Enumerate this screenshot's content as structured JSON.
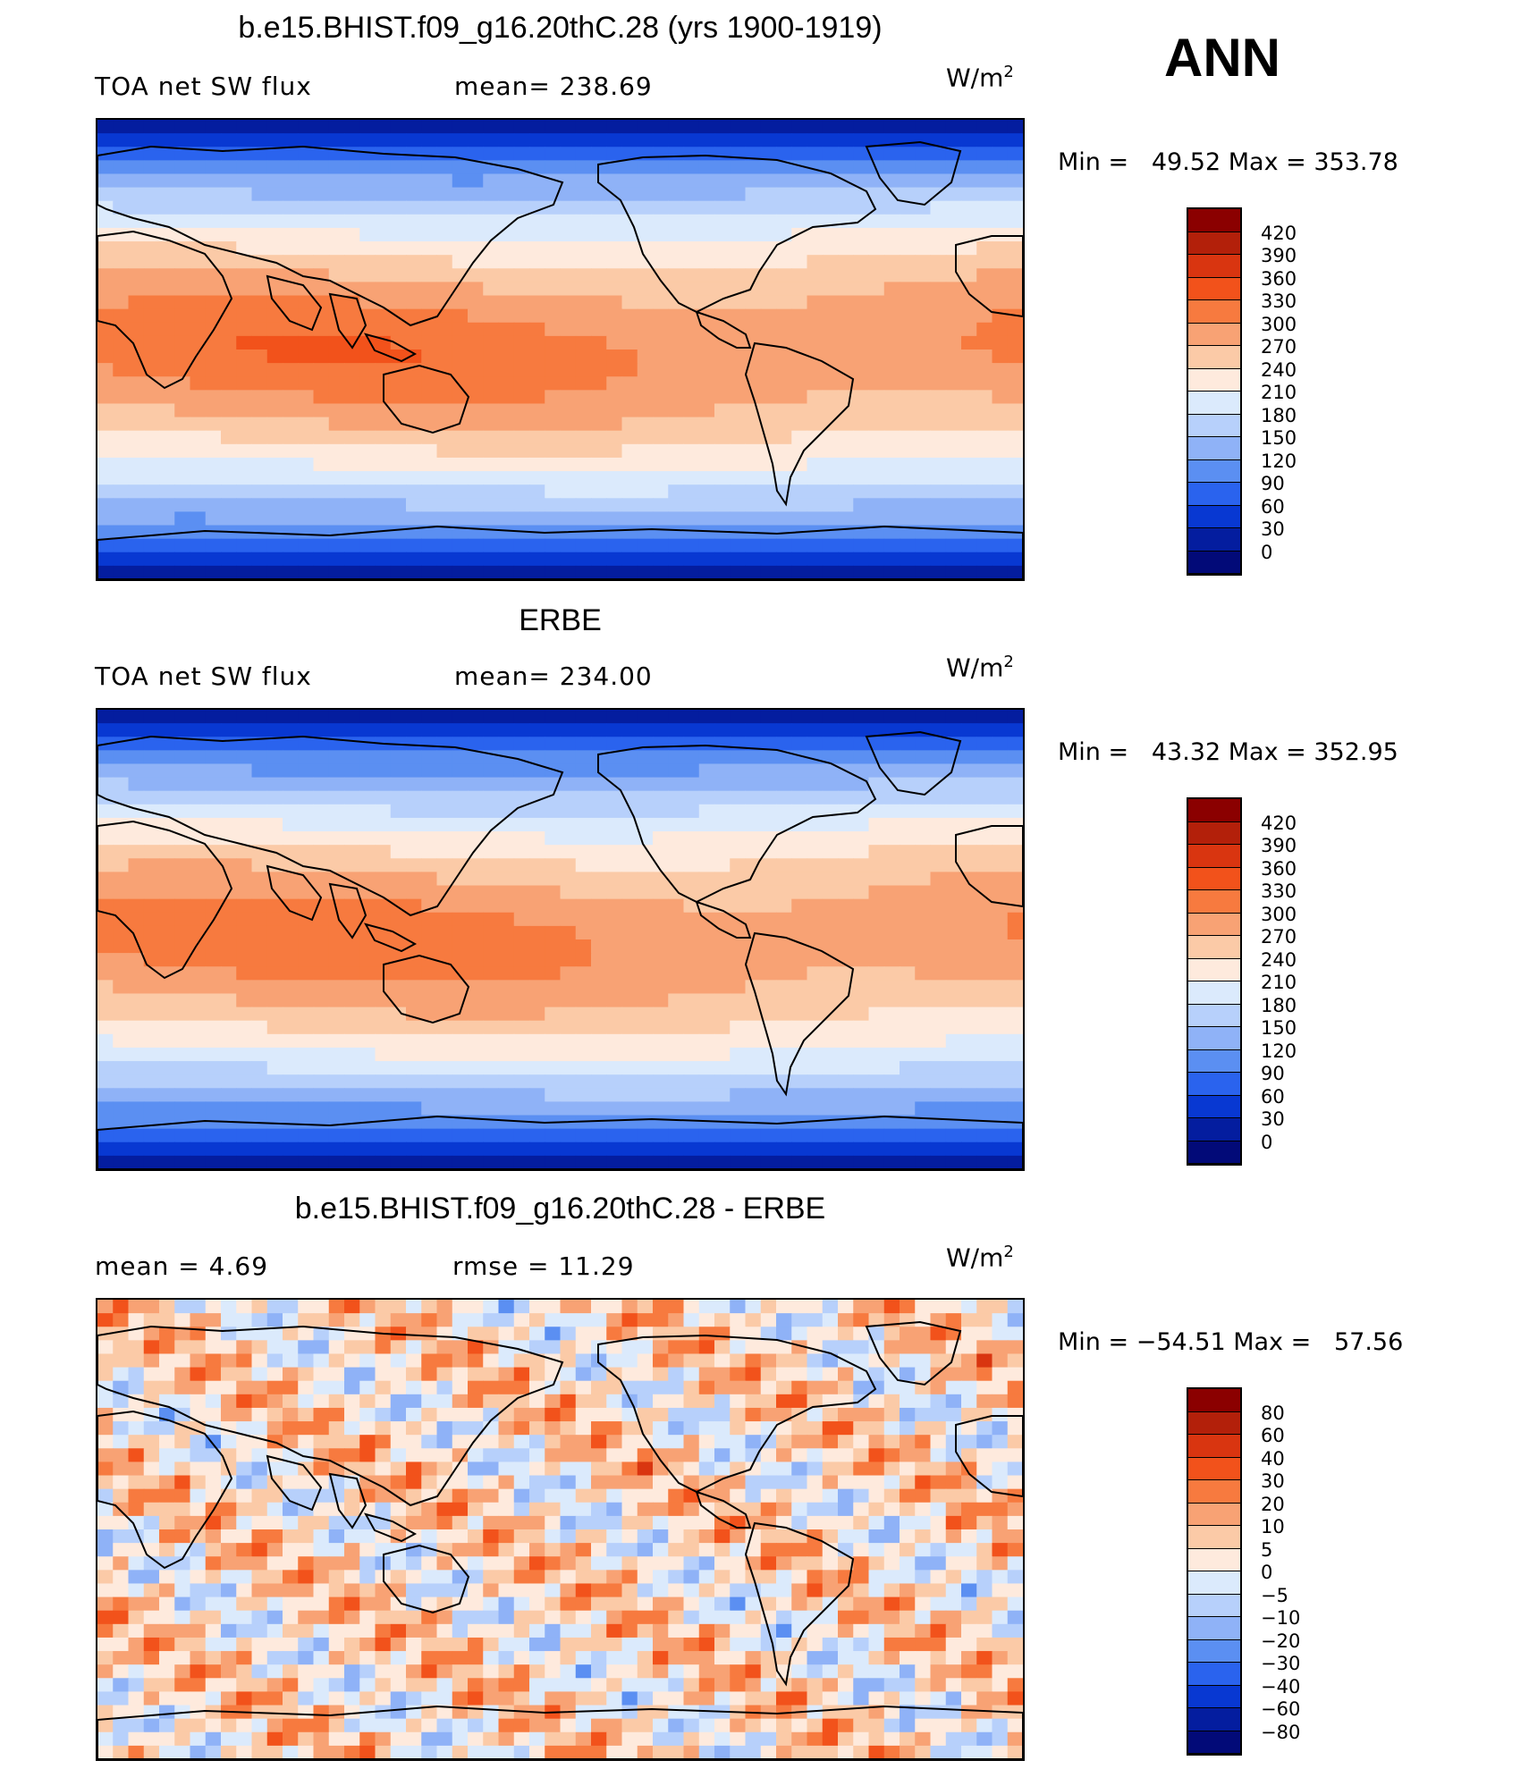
{
  "season": "ANN",
  "chart_data": [
    {
      "type": "heatmap",
      "title": "b.e15.BHIST.f09_g16.20thC.28 (yrs 1900-1919)",
      "left_label": "TOA net SW flux",
      "center_label": "mean= 238.69",
      "units": "W/m",
      "units_sup": "2",
      "minmax": "Min =   49.52 Max = 353.78",
      "stats": {
        "mean": 238.69,
        "min": 49.52,
        "max": 353.78
      },
      "colorbar": {
        "levels": [
          "420",
          "390",
          "360",
          "330",
          "300",
          "270",
          "240",
          "210",
          "180",
          "150",
          "120",
          "90",
          "60",
          "30",
          "0"
        ],
        "colors": [
          "#8b0000",
          "#b3200a",
          "#d93510",
          "#f2521b",
          "#f77a3f",
          "#f8a274",
          "#fbcaa7",
          "#feeadd",
          "#dbeafc",
          "#b7d0fb",
          "#8fb2f7",
          "#5b8ff2",
          "#2a63ee",
          "#0838d2",
          "#041d9f",
          "#020a78"
        ]
      }
    },
    {
      "type": "heatmap",
      "title": "ERBE",
      "left_label": "TOA net SW flux",
      "center_label": "mean= 234.00",
      "units": "W/m",
      "units_sup": "2",
      "minmax": "Min =   43.32 Max = 352.95",
      "stats": {
        "mean": 234.0,
        "min": 43.32,
        "max": 352.95
      },
      "colorbar": {
        "levels": [
          "420",
          "390",
          "360",
          "330",
          "300",
          "270",
          "240",
          "210",
          "180",
          "150",
          "120",
          "90",
          "60",
          "30",
          "0"
        ],
        "colors": [
          "#8b0000",
          "#b3200a",
          "#d93510",
          "#f2521b",
          "#f77a3f",
          "#f8a274",
          "#fbcaa7",
          "#feeadd",
          "#dbeafc",
          "#b7d0fb",
          "#8fb2f7",
          "#5b8ff2",
          "#2a63ee",
          "#0838d2",
          "#041d9f",
          "#020a78"
        ]
      }
    },
    {
      "type": "heatmap",
      "title": "b.e15.BHIST.f09_g16.20thC.28 - ERBE",
      "left_label": "mean =    4.69",
      "center_label": "rmse =   11.29",
      "units": "W/m",
      "units_sup": "2",
      "minmax": "Min = −54.51 Max =   57.56",
      "stats": {
        "mean": 4.69,
        "rmse": 11.29,
        "min": -54.51,
        "max": 57.56
      },
      "colorbar": {
        "levels": [
          "80",
          "60",
          "40",
          "30",
          "20",
          "10",
          "5",
          "0",
          "−5",
          "−10",
          "−20",
          "−30",
          "−40",
          "−60",
          "−80"
        ],
        "colors": [
          "#8b0000",
          "#b3200a",
          "#d93510",
          "#f2521b",
          "#f77a3f",
          "#f8a274",
          "#fbcaa7",
          "#feeadd",
          "#dbeafc",
          "#b7d0fb",
          "#8fb2f7",
          "#5b8ff2",
          "#2a63ee",
          "#0838d2",
          "#041d9f",
          "#020a78"
        ]
      }
    }
  ]
}
